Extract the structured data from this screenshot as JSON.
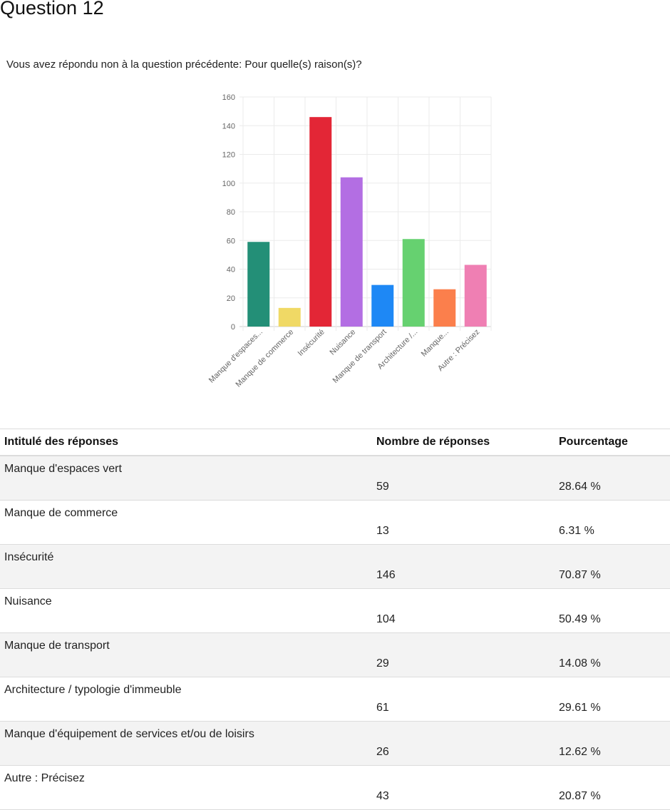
{
  "page": {
    "title": "Question 12",
    "question": "Vous avez répondu non à la question précédente: Pour quelle(s) raison(s)?"
  },
  "table": {
    "headers": [
      "Intitulé des réponses",
      "Nombre de réponses",
      "Pourcentage"
    ],
    "rows": [
      {
        "label": "Manque d'espaces vert",
        "count": "59",
        "percent": "28.64 %"
      },
      {
        "label": "Manque de commerce",
        "count": "13",
        "percent": "6.31 %"
      },
      {
        "label": "Insécurité",
        "count": "146",
        "percent": "70.87 %"
      },
      {
        "label": "Nuisance",
        "count": "104",
        "percent": "50.49 %"
      },
      {
        "label": "Manque de transport",
        "count": "29",
        "percent": "14.08 %"
      },
      {
        "label": "Architecture / typologie d'immeuble",
        "count": "61",
        "percent": "29.61 %"
      },
      {
        "label": "Manque d'équipement de services et/ou de loisirs",
        "count": "26",
        "percent": "12.62 %"
      },
      {
        "label": "Autre : Précisez",
        "count": "43",
        "percent": "20.87 %"
      }
    ]
  },
  "chart_data": {
    "type": "bar",
    "categories": [
      "Manque d'espaces...",
      "Manque de commerce",
      "Insécurité",
      "Nuisance",
      "Manque de transport",
      "Architecture /...",
      "Manque...",
      "Autre : Précisez"
    ],
    "values": [
      59,
      13,
      146,
      104,
      29,
      61,
      26,
      43
    ],
    "colors": [
      "#238f77",
      "#f0d965",
      "#e32636",
      "#b36ee3",
      "#1e88f5",
      "#66d170",
      "#fb7f4c",
      "#ef7fb3"
    ],
    "yticks": [
      0,
      20,
      40,
      60,
      80,
      100,
      120,
      140,
      160
    ],
    "ylim": [
      0,
      160
    ],
    "grid": true,
    "title": "",
    "xlabel": "",
    "ylabel": ""
  }
}
